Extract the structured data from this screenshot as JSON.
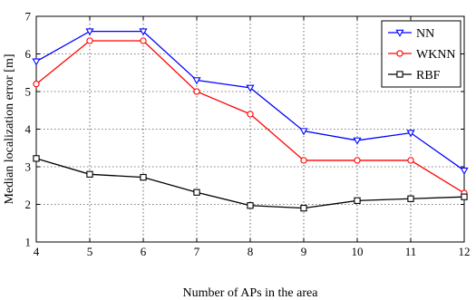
{
  "chart_data": {
    "type": "line",
    "title": "",
    "xlabel": "Number of APs in the area",
    "ylabel": "Median localization error [m]",
    "x": [
      4,
      5,
      6,
      7,
      8,
      9,
      10,
      11,
      12
    ],
    "xlim": [
      4,
      12
    ],
    "ylim": [
      1,
      7
    ],
    "xticks": [
      "4",
      "5",
      "6",
      "7",
      "8",
      "9",
      "10",
      "11",
      "12"
    ],
    "yticks": [
      "1",
      "2",
      "3",
      "4",
      "5",
      "6",
      "7"
    ],
    "grid": true,
    "legend_position": "top-right",
    "series": [
      {
        "name": "NN",
        "color": "#0000ff",
        "marker": "triangle-down",
        "values": [
          5.8,
          6.6,
          6.6,
          5.3,
          5.1,
          3.95,
          3.7,
          3.9,
          2.9
        ]
      },
      {
        "name": "WKNN",
        "color": "#ff0000",
        "marker": "circle",
        "values": [
          5.2,
          6.35,
          6.35,
          5.0,
          4.4,
          3.17,
          3.17,
          3.17,
          2.3
        ]
      },
      {
        "name": "RBF",
        "color": "#000000",
        "marker": "square",
        "values": [
          3.22,
          2.8,
          2.72,
          2.32,
          1.97,
          1.9,
          2.1,
          2.15,
          2.2
        ]
      }
    ]
  }
}
